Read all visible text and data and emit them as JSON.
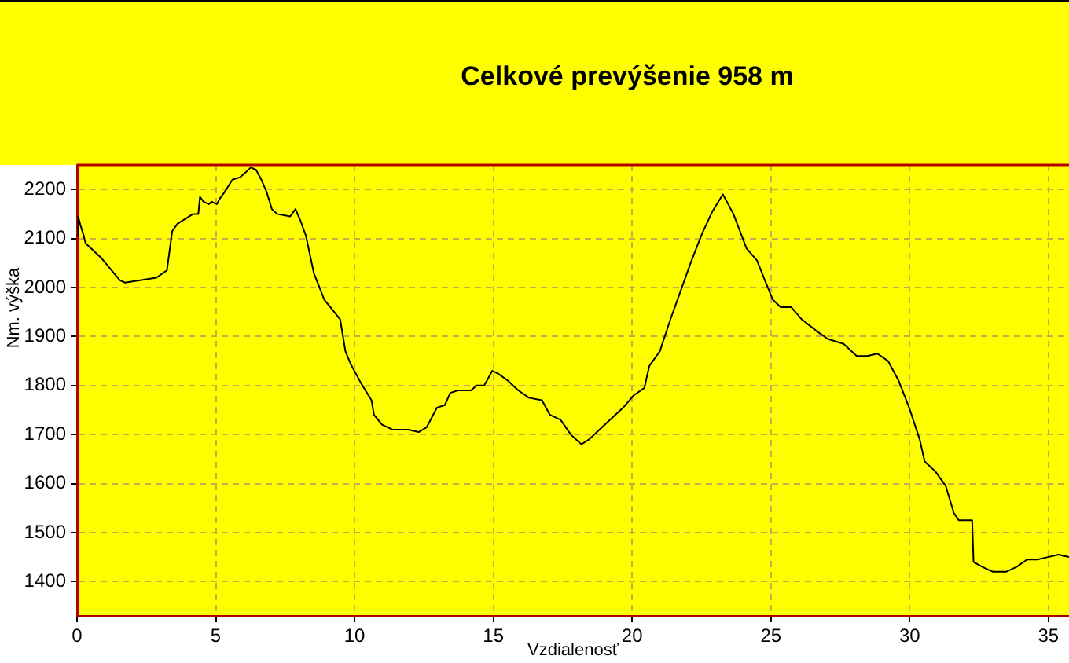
{
  "chart_data": {
    "type": "line",
    "title": "Celkové prevýšenie 958 m",
    "xlabel": "Vzdialenosť",
    "ylabel": "Nm. výška",
    "x": [
      0,
      0.04,
      0.12,
      0.22,
      0.31,
      0.88,
      1.54,
      1.73,
      2.86,
      3.24,
      3.43,
      3.62,
      4.18,
      4.37,
      4.43,
      4.56,
      4.75,
      4.85,
      5.04,
      5.13,
      5.32,
      5.6,
      5.88,
      6.08,
      6.26,
      6.45,
      6.64,
      6.83,
      7.02,
      7.21,
      7.68,
      7.87,
      8.06,
      8.25,
      8.53,
      8.91,
      9.2,
      9.48,
      9.67,
      9.85,
      10.23,
      10.61,
      10.7,
      10.99,
      11.37,
      11.93,
      12.31,
      12.6,
      12.97,
      13.25,
      13.45,
      13.73,
      14.2,
      14.39,
      14.67,
      14.77,
      14.96,
      15.15,
      15.52,
      15.9,
      16.28,
      16.75,
      17.04,
      17.42,
      17.79,
      18.17,
      18.45,
      18.92,
      19.68,
      20.06,
      20.44,
      20.62,
      21.0,
      21.38,
      21.76,
      22.14,
      22.52,
      22.89,
      23.27,
      23.65,
      24.12,
      24.5,
      24.78,
      25.07,
      25.35,
      25.73,
      26.11,
      26.67,
      27.05,
      27.62,
      28.09,
      28.47,
      28.84,
      29.22,
      29.6,
      29.98,
      30.36,
      30.54,
      30.92,
      31.3,
      31.59,
      31.77,
      32.25,
      32.3,
      32.62,
      33.0,
      33.47,
      33.85,
      34.23,
      34.6,
      34.98,
      35.36,
      35.74
    ],
    "values": [
      2105,
      2145,
      2128,
      2110,
      2090,
      2060,
      2015,
      2010,
      2020,
      2035,
      2115,
      2130,
      2150,
      2150,
      2185,
      2175,
      2170,
      2175,
      2170,
      2180,
      2195,
      2220,
      2225,
      2235,
      2245,
      2240,
      2220,
      2195,
      2160,
      2150,
      2145,
      2160,
      2135,
      2105,
      2030,
      1975,
      1955,
      1935,
      1870,
      1845,
      1805,
      1770,
      1740,
      1720,
      1710,
      1710,
      1705,
      1715,
      1755,
      1760,
      1785,
      1790,
      1790,
      1800,
      1800,
      1810,
      1830,
      1825,
      1810,
      1790,
      1775,
      1770,
      1740,
      1730,
      1700,
      1680,
      1690,
      1715,
      1755,
      1780,
      1795,
      1840,
      1870,
      1935,
      1995,
      2055,
      2110,
      2155,
      2190,
      2150,
      2080,
      2055,
      2015,
      1975,
      1960,
      1960,
      1935,
      1910,
      1895,
      1885,
      1860,
      1860,
      1865,
      1850,
      1810,
      1755,
      1690,
      1645,
      1625,
      1595,
      1540,
      1525,
      1525,
      1440,
      1430,
      1420,
      1420,
      1430,
      1445,
      1445,
      1450,
      1455,
      1450
    ],
    "color": "#000000",
    "xlim": [
      0,
      35.74
    ],
    "xticks": [
      0,
      5,
      10,
      15,
      20,
      25,
      30,
      35
    ],
    "ylim": [
      1330,
      2250
    ],
    "yticks": [
      1400,
      1500,
      1600,
      1700,
      1800,
      1900,
      2000,
      2100,
      2200
    ],
    "grid": true,
    "marker": "none",
    "line_style": "solid"
  }
}
